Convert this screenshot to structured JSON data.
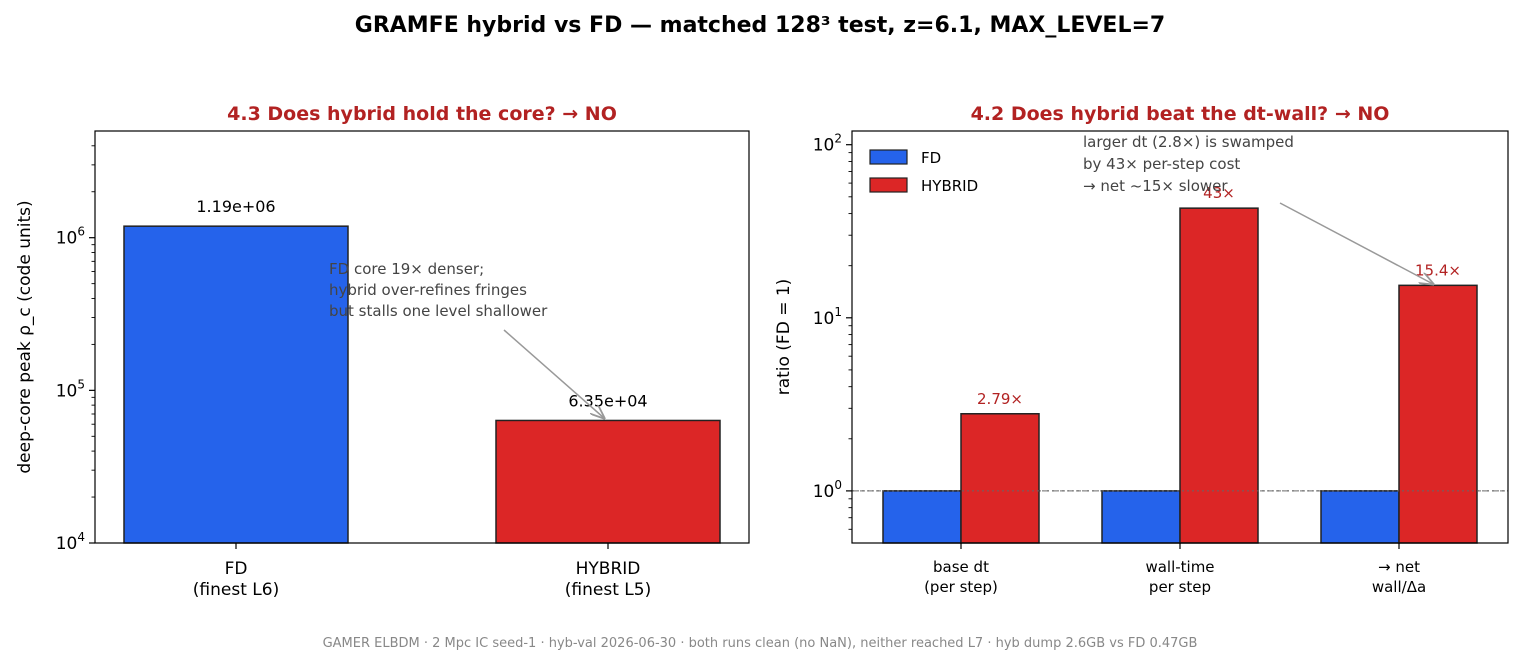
{
  "suptitle": "GRAMFE hybrid vs FD — matched 128³ test, z=6.1, MAX_LEVEL=7",
  "footer": "GAMER ELBDM · 2 Mpc IC seed-1 · hyb-val 2026-06-30 · both runs clean (no NaN), neither reached L7 · hyb dump 2.6GB vs FD 0.47GB",
  "colors": {
    "fd": "#2563eb",
    "hybrid": "#dc2626",
    "title": "#b22222"
  },
  "chart_data": [
    {
      "type": "bar",
      "title": "4.3  Does hybrid hold the core?   →  NO",
      "ylabel": "deep-core peak ρ_c  (code units)",
      "yscale": "log",
      "ylim": [
        10000,
        5000000
      ],
      "yticks": [
        {
          "base": "10",
          "exp": "4",
          "value": 10000
        },
        {
          "base": "10",
          "exp": "5",
          "value": 100000
        },
        {
          "base": "10",
          "exp": "6",
          "value": 1000000
        }
      ],
      "categories": [
        [
          "FD",
          "(finest L6)"
        ],
        [
          "HYBRID",
          "(finest L5)"
        ]
      ],
      "values": [
        1190000,
        63500
      ],
      "labels": [
        "1.19e+06",
        "6.35e+04"
      ],
      "annotation": [
        "FD core 19× denser;",
        "hybrid over-refines fringes",
        "but stalls one level shallower"
      ]
    },
    {
      "type": "bar",
      "title": "4.2  Does hybrid beat the dt-wall?   →  NO",
      "ylabel": "ratio  (FD = 1)",
      "yscale": "log",
      "ylim": [
        0.5,
        120
      ],
      "yticks": [
        {
          "base": "10",
          "exp": "0",
          "value": 1
        },
        {
          "base": "10",
          "exp": "1",
          "value": 10
        },
        {
          "base": "10",
          "exp": "2",
          "value": 100
        }
      ],
      "categories": [
        [
          "base dt",
          "(per step)"
        ],
        [
          "wall-time",
          "per step"
        ],
        [
          "→ net",
          "wall/Δa"
        ]
      ],
      "series": [
        {
          "name": "FD",
          "values": [
            1,
            1,
            1
          ],
          "labels": []
        },
        {
          "name": "HYBRID",
          "values": [
            2.79,
            43,
            15.4
          ],
          "labels": [
            "2.79×",
            "43×",
            "15.4×"
          ]
        }
      ],
      "refline": 1,
      "annotation": [
        "larger dt (2.8×) is swamped",
        "by 43× per-step cost",
        "→ net ~15× slower"
      ]
    }
  ]
}
